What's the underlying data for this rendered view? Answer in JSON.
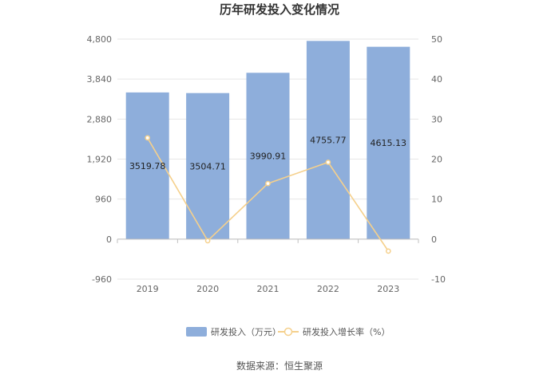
{
  "chart_data": {
    "type": "bar",
    "title": "历年研发投入变化情况",
    "categories": [
      "2019",
      "2020",
      "2021",
      "2022",
      "2023"
    ],
    "series": [
      {
        "name": "研发投入（万元）",
        "type": "bar",
        "axis": "left",
        "values": [
          3519.78,
          3504.71,
          3990.91,
          4755.77,
          4615.13
        ],
        "value_labels": [
          "3519.78",
          "3504.71",
          "3990.91",
          "4755.77",
          "4615.13"
        ],
        "color": "#8eaedb"
      },
      {
        "name": "研发投入增长率（%）",
        "type": "line",
        "axis": "right",
        "values": [
          25.3,
          -0.4,
          13.9,
          19.2,
          -3.0
        ],
        "color": "#f5d08c"
      }
    ],
    "y_left": {
      "ticks": [
        "4,800",
        "3,840",
        "2,880",
        "1,920",
        "960",
        "0",
        "-960"
      ],
      "ylim": [
        -960,
        4800
      ]
    },
    "y_right": {
      "ticks": [
        "50",
        "40",
        "30",
        "20",
        "10",
        "0",
        "-10"
      ],
      "ylim": [
        -10,
        50
      ]
    },
    "grid": true,
    "legend_position": "bottom"
  },
  "source": "数据来源：恒生聚源"
}
